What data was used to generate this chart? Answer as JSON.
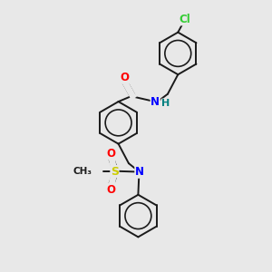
{
  "background_color": "#e8e8e8",
  "bond_color": "#1a1a1a",
  "colors": {
    "O": "#ff0000",
    "N": "#0000ff",
    "H": "#008080",
    "S": "#cccc00",
    "Cl": "#33cc33",
    "C": "#1a1a1a"
  },
  "figsize": [
    3.0,
    3.0
  ],
  "dpi": 100
}
